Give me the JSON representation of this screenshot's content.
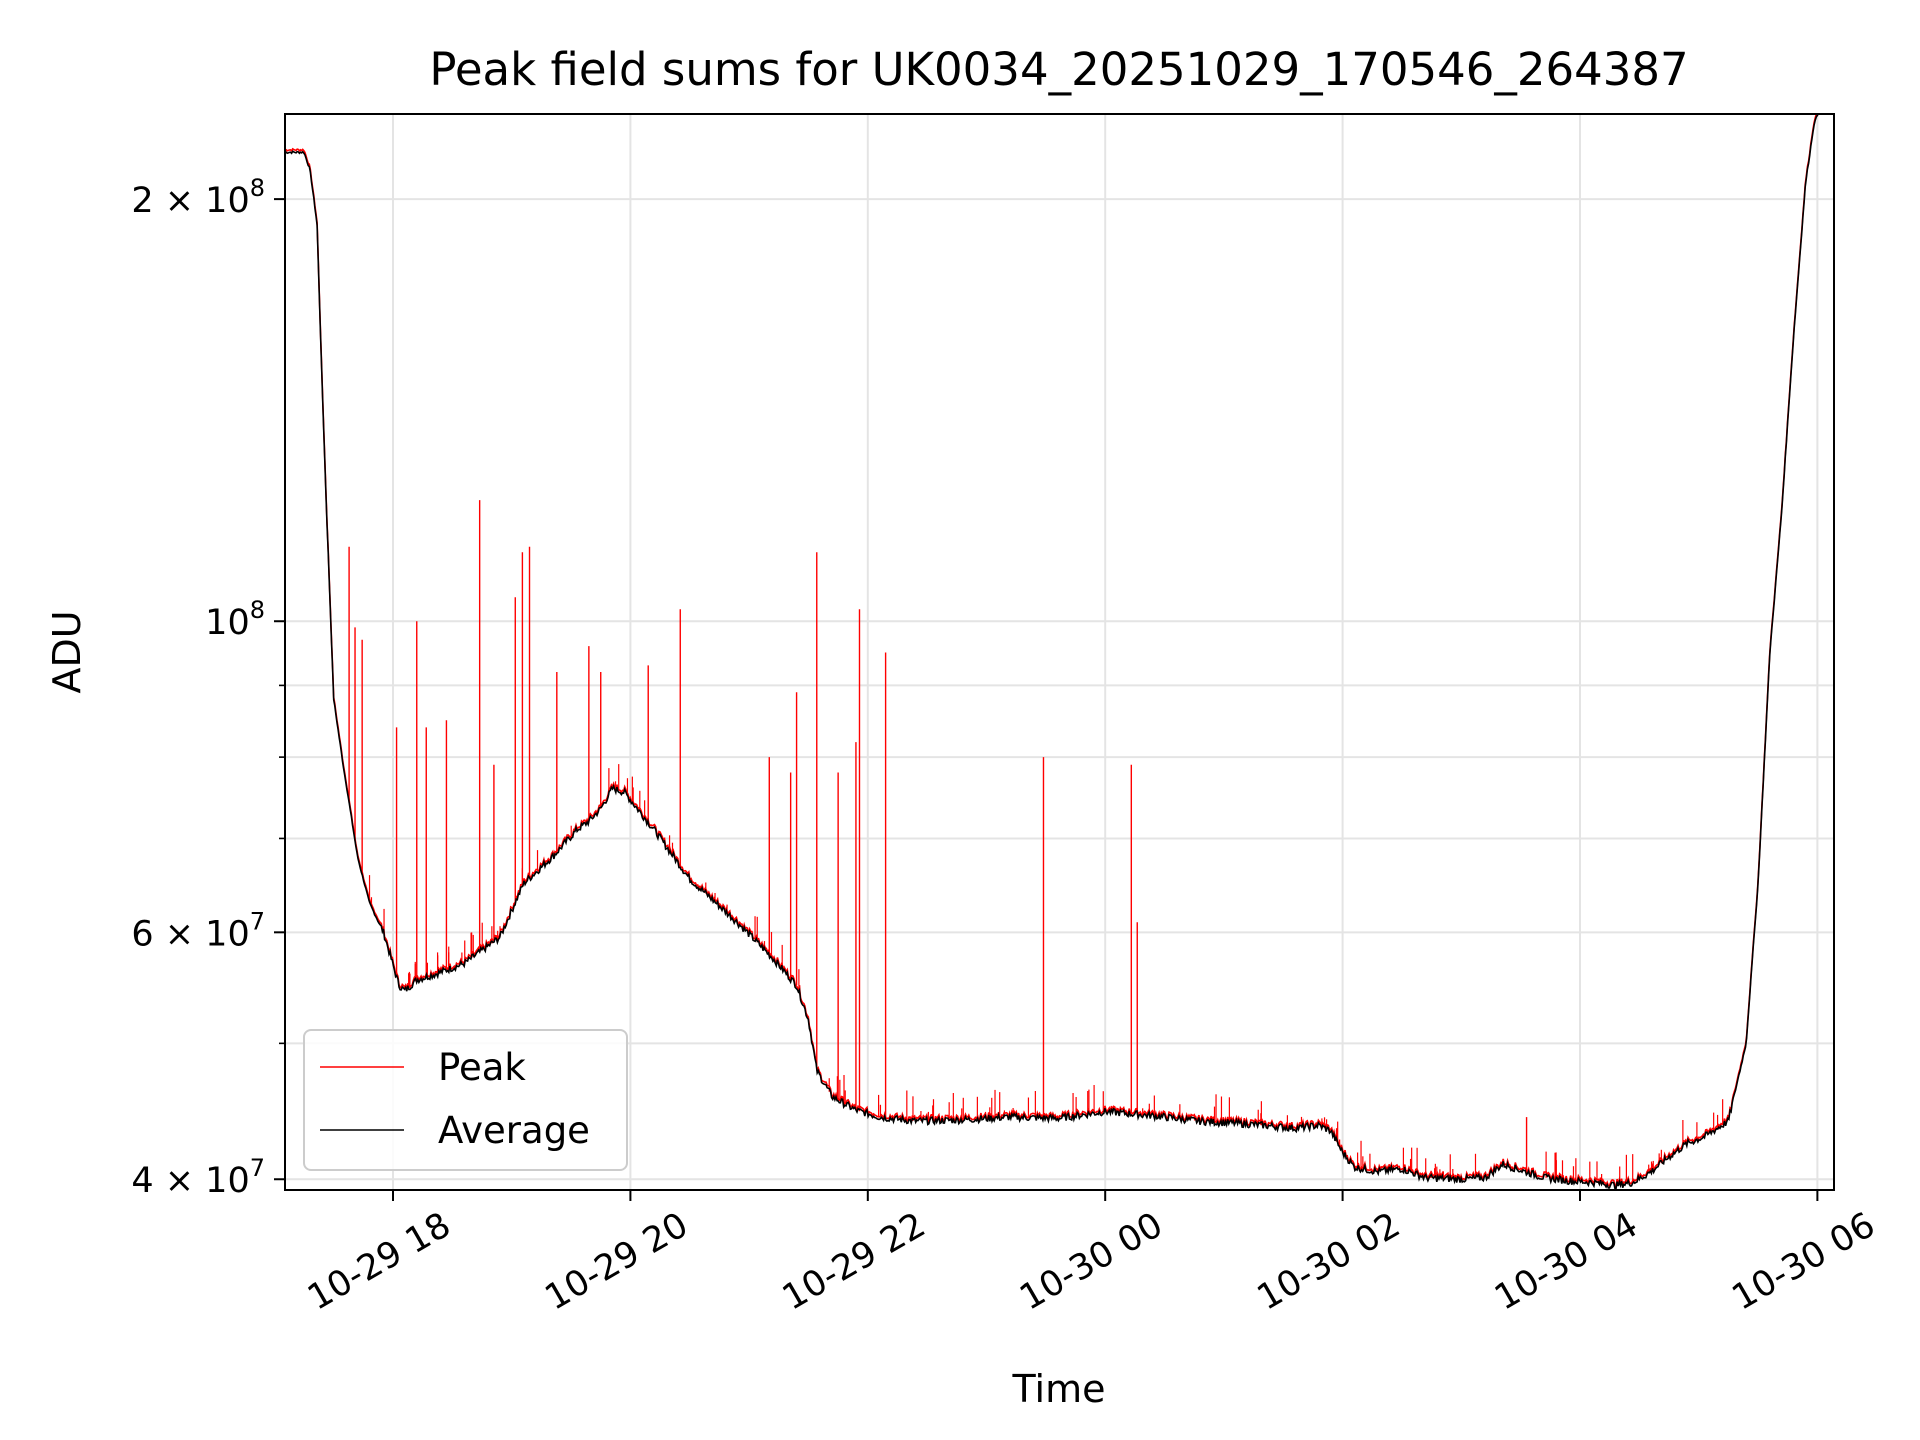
{
  "chart_data": {
    "type": "line",
    "title": "Peak field sums for UK0034_20251029_170546_264387",
    "xlabel": "Time",
    "ylabel": "ADU",
    "x_unit": "hours since 2025-10-29 00:00",
    "xlim": [
      17.09,
      30.14
    ],
    "ylim": [
      39300000,
      230000000
    ],
    "y_scale": "log",
    "grid": true,
    "legend_position": "lower-left",
    "x_ticks": [
      {
        "value": 18,
        "label": "10-29 18"
      },
      {
        "value": 20,
        "label": "10-29 20"
      },
      {
        "value": 22,
        "label": "10-29 22"
      },
      {
        "value": 24,
        "label": "10-30 00"
      },
      {
        "value": 26,
        "label": "10-30 02"
      },
      {
        "value": 28,
        "label": "10-30 04"
      },
      {
        "value": 30,
        "label": "10-30 06"
      }
    ],
    "y_ticks_major": [
      {
        "value": 40000000,
        "base": "4 × 10",
        "exp": "7"
      },
      {
        "value": 60000000,
        "base": "6 × 10",
        "exp": "7"
      },
      {
        "value": 100000000,
        "base": "10",
        "exp": "8"
      },
      {
        "value": 200000000,
        "base": "2 × 10",
        "exp": "8"
      }
    ],
    "y_ticks_minor": [
      50000000,
      70000000,
      80000000,
      90000000
    ],
    "series": [
      {
        "name": "Average",
        "color": "#000000",
        "x": [
          17.09,
          17.25,
          17.3,
          17.36,
          17.4,
          17.44,
          17.5,
          17.58,
          17.7,
          17.8,
          17.92,
          18.05,
          18.1,
          18.2,
          18.35,
          18.6,
          18.9,
          19.1,
          19.35,
          19.55,
          19.65,
          19.75,
          19.85,
          19.95,
          20.2,
          20.5,
          20.9,
          21.2,
          21.4,
          21.5,
          21.57,
          21.7,
          21.9,
          22.1,
          22.4,
          22.8,
          23.2,
          23.6,
          24.0,
          24.4,
          24.8,
          25.2,
          25.6,
          25.8,
          25.9,
          26.0,
          26.1,
          26.3,
          26.5,
          26.7,
          27.0,
          27.2,
          27.35,
          27.5,
          27.7,
          27.9,
          28.1,
          28.3,
          28.45,
          28.6,
          28.75,
          28.9,
          29.05,
          29.25,
          29.4,
          29.5,
          29.6,
          29.7,
          29.8,
          29.9,
          29.97,
          30.02,
          30.14
        ],
        "values": [
          216000000,
          216000000,
          210000000,
          192000000,
          150000000,
          120000000,
          88000000,
          79000000,
          68000000,
          63000000,
          60000000,
          55000000,
          54500000,
          55500000,
          56000000,
          57000000,
          59500000,
          65000000,
          68000000,
          71000000,
          72000000,
          73500000,
          76000000,
          75500000,
          71000000,
          65500000,
          61000000,
          57500000,
          55000000,
          52000000,
          47800000,
          45800000,
          44800000,
          44300000,
          44000000,
          44100000,
          44300000,
          44200000,
          44700000,
          44400000,
          44000000,
          43800000,
          43500000,
          43700000,
          43300000,
          41800000,
          40800000,
          40500000,
          40700000,
          40100000,
          40000000,
          40100000,
          41000000,
          40600000,
          40100000,
          39900000,
          39800000,
          39600000,
          39800000,
          40500000,
          41500000,
          42400000,
          42900000,
          44000000,
          50000000,
          65000000,
          95000000,
          120000000,
          160000000,
          205000000,
          226000000,
          232000000,
          235000000
        ]
      },
      {
        "name": "Peak",
        "color": "#ff0000",
        "spikes": [
          {
            "x": 17.63,
            "value": 113000000
          },
          {
            "x": 17.68,
            "value": 99000000
          },
          {
            "x": 17.74,
            "value": 97000000
          },
          {
            "x": 18.03,
            "value": 84000000
          },
          {
            "x": 18.2,
            "value": 100000000
          },
          {
            "x": 18.28,
            "value": 84000000
          },
          {
            "x": 18.45,
            "value": 85000000
          },
          {
            "x": 18.73,
            "value": 122000000
          },
          {
            "x": 18.85,
            "value": 79000000
          },
          {
            "x": 19.03,
            "value": 104000000
          },
          {
            "x": 19.09,
            "value": 112000000
          },
          {
            "x": 19.15,
            "value": 113000000
          },
          {
            "x": 19.38,
            "value": 92000000
          },
          {
            "x": 19.65,
            "value": 96000000
          },
          {
            "x": 19.75,
            "value": 92000000
          },
          {
            "x": 20.15,
            "value": 93000000
          },
          {
            "x": 20.42,
            "value": 102000000
          },
          {
            "x": 21.17,
            "value": 80000000
          },
          {
            "x": 21.35,
            "value": 78000000
          },
          {
            "x": 21.4,
            "value": 89000000
          },
          {
            "x": 21.57,
            "value": 112000000
          },
          {
            "x": 21.75,
            "value": 78000000
          },
          {
            "x": 21.9,
            "value": 82000000
          },
          {
            "x": 21.93,
            "value": 102000000
          },
          {
            "x": 22.15,
            "value": 95000000
          },
          {
            "x": 23.48,
            "value": 80000000
          },
          {
            "x": 24.22,
            "value": 79000000
          },
          {
            "x": 24.27,
            "value": 61000000
          },
          {
            "x": 25.95,
            "value": 43500000
          },
          {
            "x": 27.55,
            "value": 44300000
          }
        ]
      }
    ]
  },
  "legend": {
    "items": [
      {
        "label": "Peak",
        "color": "#ff0000"
      },
      {
        "label": "Average",
        "color": "#000000"
      }
    ]
  }
}
